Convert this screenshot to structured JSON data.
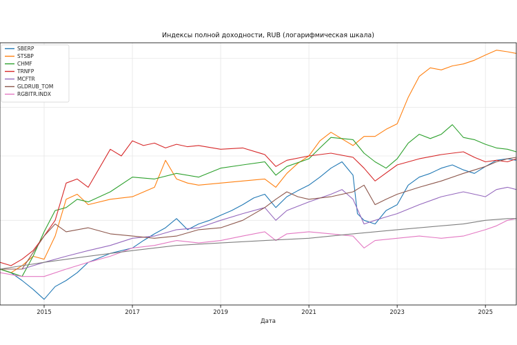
{
  "chart_data": {
    "type": "line",
    "title": "Индексы полной доходности, RUB (логарифмическая шкала)",
    "xlabel": "Дата",
    "ylabel": "",
    "y_scale": "log",
    "y_tick_labels": "hidden",
    "xlim": [
      2014.0,
      2025.7
    ],
    "ylim": [
      0.6,
      25
    ],
    "x_ticks": [
      2015,
      2017,
      2019,
      2021,
      2023,
      2025
    ],
    "x_tick_labels": [
      "2015",
      "2017",
      "2019",
      "2021",
      "2023",
      "2025"
    ],
    "grid": true,
    "legend_position": "top-left",
    "series": [
      {
        "name": "SBERP",
        "color": "#1f77b4",
        "x": [
          2014.0,
          2014.25,
          2014.5,
          2014.75,
          2015.0,
          2015.25,
          2015.5,
          2015.75,
          2016.0,
          2016.5,
          2017.0,
          2017.25,
          2017.5,
          2017.75,
          2018.0,
          2018.25,
          2018.5,
          2018.75,
          2019.0,
          2019.25,
          2019.5,
          2019.75,
          2020.0,
          2020.25,
          2020.5,
          2020.75,
          2021.0,
          2021.25,
          2021.5,
          2021.75,
          2022.0,
          2022.1,
          2022.25,
          2022.5,
          2022.75,
          2023.0,
          2023.25,
          2023.5,
          2023.75,
          2024.0,
          2024.25,
          2024.5,
          2024.75,
          2025.0,
          2025.25,
          2025.5,
          2025.7
        ],
        "y": [
          1.0,
          0.95,
          0.85,
          0.75,
          0.65,
          0.78,
          0.85,
          0.95,
          1.1,
          1.25,
          1.35,
          1.5,
          1.65,
          1.8,
          2.05,
          1.75,
          1.9,
          2.0,
          2.15,
          2.3,
          2.5,
          2.75,
          2.9,
          2.4,
          2.8,
          3.05,
          3.3,
          3.7,
          4.2,
          4.6,
          3.8,
          2.2,
          2.0,
          1.9,
          2.3,
          2.5,
          3.3,
          3.7,
          3.9,
          4.2,
          4.4,
          4.1,
          3.9,
          4.3,
          4.7,
          4.8,
          4.7
        ]
      },
      {
        "name": "STSBP",
        "color": "#ff7f0e",
        "x": [
          2014.0,
          2014.25,
          2014.5,
          2014.75,
          2015.0,
          2015.25,
          2015.5,
          2015.75,
          2016.0,
          2016.5,
          2017.0,
          2017.5,
          2017.75,
          2018.0,
          2018.25,
          2018.5,
          2019.0,
          2019.5,
          2020.0,
          2020.25,
          2020.5,
          2020.75,
          2021.0,
          2021.25,
          2021.5,
          2022.0,
          2022.25,
          2022.5,
          2022.75,
          2023.0,
          2023.25,
          2023.5,
          2023.75,
          2024.0,
          2024.25,
          2024.5,
          2024.75,
          2025.0,
          2025.25,
          2025.5,
          2025.7
        ],
        "y": [
          1.0,
          0.95,
          1.05,
          1.2,
          1.15,
          1.6,
          2.7,
          2.9,
          2.5,
          2.7,
          2.8,
          3.2,
          4.7,
          3.6,
          3.4,
          3.3,
          3.4,
          3.5,
          3.6,
          3.2,
          3.9,
          4.5,
          5.0,
          6.2,
          7.0,
          5.8,
          6.6,
          6.6,
          7.3,
          7.9,
          11.5,
          15.5,
          17.5,
          17.0,
          18.0,
          18.5,
          19.5,
          21.0,
          22.5,
          22.0,
          21.5
        ]
      },
      {
        "name": "CHMF",
        "color": "#2ca02c",
        "x": [
          2014.0,
          2014.25,
          2014.5,
          2014.75,
          2015.0,
          2015.25,
          2015.5,
          2015.75,
          2016.0,
          2016.5,
          2017.0,
          2017.5,
          2018.0,
          2018.5,
          2019.0,
          2019.5,
          2020.0,
          2020.25,
          2020.5,
          2021.0,
          2021.25,
          2021.5,
          2022.0,
          2022.25,
          2022.5,
          2022.75,
          2023.0,
          2023.25,
          2023.5,
          2023.75,
          2024.0,
          2024.25,
          2024.5,
          2024.75,
          2025.0,
          2025.25,
          2025.5,
          2025.7
        ],
        "y": [
          1.0,
          0.95,
          0.9,
          1.2,
          1.7,
          2.3,
          2.4,
          2.7,
          2.6,
          3.0,
          3.7,
          3.6,
          3.9,
          3.7,
          4.2,
          4.4,
          4.6,
          3.8,
          4.3,
          4.8,
          5.6,
          6.5,
          6.3,
          5.2,
          4.6,
          4.2,
          4.8,
          6.0,
          6.8,
          6.4,
          6.8,
          7.8,
          6.5,
          6.3,
          5.9,
          5.6,
          5.5,
          5.3
        ]
      },
      {
        "name": "TRNFP",
        "color": "#d62728",
        "x": [
          2014.0,
          2014.25,
          2014.5,
          2014.75,
          2015.0,
          2015.25,
          2015.5,
          2015.75,
          2016.0,
          2016.5,
          2016.75,
          2017.0,
          2017.25,
          2017.5,
          2017.75,
          2018.0,
          2018.25,
          2018.5,
          2019.0,
          2019.5,
          2020.0,
          2020.25,
          2020.5,
          2021.0,
          2021.5,
          2022.0,
          2022.25,
          2022.5,
          2023.0,
          2023.5,
          2024.0,
          2024.5,
          2024.75,
          2025.0,
          2025.25,
          2025.5,
          2025.7
        ],
        "y": [
          1.1,
          1.05,
          1.15,
          1.3,
          1.6,
          2.0,
          3.4,
          3.6,
          3.2,
          5.5,
          5.0,
          6.2,
          5.8,
          6.0,
          5.6,
          5.9,
          5.7,
          5.8,
          5.5,
          5.6,
          5.1,
          4.3,
          4.7,
          5.0,
          5.2,
          4.9,
          4.2,
          3.5,
          4.4,
          4.8,
          5.1,
          5.3,
          4.9,
          4.6,
          4.7,
          4.6,
          4.8
        ]
      },
      {
        "name": "MCFTR",
        "color": "#9467bd",
        "x": [
          2014.0,
          2014.5,
          2015.0,
          2015.5,
          2016.0,
          2016.5,
          2017.0,
          2017.5,
          2018.0,
          2018.5,
          2019.0,
          2019.5,
          2020.0,
          2020.25,
          2020.5,
          2021.0,
          2021.5,
          2021.75,
          2022.0,
          2022.25,
          2022.5,
          2022.75,
          2023.0,
          2023.5,
          2024.0,
          2024.5,
          2024.75,
          2025.0,
          2025.25,
          2025.5,
          2025.7
        ],
        "y": [
          1.0,
          1.0,
          1.1,
          1.2,
          1.3,
          1.4,
          1.55,
          1.6,
          1.75,
          1.8,
          2.0,
          2.2,
          2.4,
          2.0,
          2.3,
          2.6,
          2.9,
          3.1,
          2.7,
          1.9,
          2.0,
          2.1,
          2.2,
          2.5,
          2.8,
          3.0,
          2.9,
          2.8,
          3.1,
          3.2,
          3.1
        ]
      },
      {
        "name": "GLDRUB_TOM",
        "color": "#8c564b",
        "x": [
          2014.0,
          2014.5,
          2015.0,
          2015.25,
          2015.5,
          2016.0,
          2016.5,
          2017.0,
          2017.5,
          2018.0,
          2018.5,
          2019.0,
          2019.5,
          2020.0,
          2020.25,
          2020.5,
          2020.75,
          2021.0,
          2021.5,
          2022.0,
          2022.25,
          2022.5,
          2022.75,
          2023.0,
          2023.5,
          2024.0,
          2024.5,
          2025.0,
          2025.25,
          2025.5,
          2025.7
        ],
        "y": [
          1.0,
          1.0,
          1.6,
          1.9,
          1.7,
          1.8,
          1.65,
          1.6,
          1.55,
          1.6,
          1.75,
          1.8,
          2.0,
          2.4,
          2.7,
          3.0,
          2.8,
          2.7,
          2.8,
          3.0,
          3.3,
          2.5,
          2.7,
          2.9,
          3.2,
          3.5,
          3.9,
          4.3,
          4.6,
          4.8,
          4.9
        ]
      },
      {
        "name": "RGBITR.INDX",
        "color": "#e377c2",
        "x": [
          2014.0,
          2014.5,
          2015.0,
          2015.5,
          2016.0,
          2016.5,
          2017.0,
          2017.5,
          2018.0,
          2018.5,
          2019.0,
          2019.5,
          2020.0,
          2020.25,
          2020.5,
          2021.0,
          2021.5,
          2022.0,
          2022.25,
          2022.5,
          2023.0,
          2023.5,
          2024.0,
          2024.5,
          2025.0,
          2025.25,
          2025.5,
          2025.7
        ],
        "y": [
          0.95,
          0.9,
          0.9,
          1.0,
          1.1,
          1.2,
          1.35,
          1.4,
          1.5,
          1.45,
          1.5,
          1.6,
          1.7,
          1.5,
          1.65,
          1.7,
          1.65,
          1.6,
          1.35,
          1.5,
          1.55,
          1.6,
          1.55,
          1.6,
          1.75,
          1.85,
          2.0,
          2.05
        ]
      },
      {
        "name": "",
        "color": "#7f7f7f",
        "x": [
          2014.0,
          2015.0,
          2016.0,
          2017.0,
          2018.0,
          2019.0,
          2020.0,
          2021.0,
          2022.0,
          2023.0,
          2024.0,
          2024.5,
          2025.0,
          2025.5,
          2025.7
        ],
        "y": [
          1.0,
          1.1,
          1.2,
          1.3,
          1.4,
          1.45,
          1.5,
          1.55,
          1.65,
          1.75,
          1.85,
          1.9,
          2.0,
          2.05,
          2.05
        ]
      }
    ]
  }
}
